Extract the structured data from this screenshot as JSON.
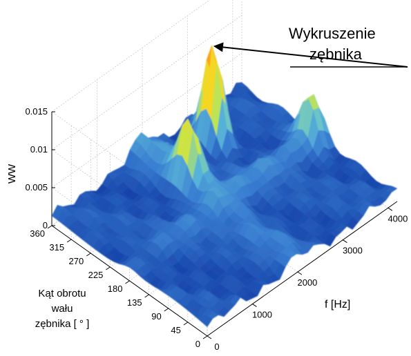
{
  "chart_data": {
    "type": "surface",
    "title": "",
    "zlabel": "WW",
    "xlabel": "f [Hz]",
    "ylabel_lines": [
      "Kąt obrotu",
      "wału",
      "zębnika [ ° ]"
    ],
    "zlim": [
      0,
      0.015
    ],
    "xlim": [
      0,
      4200
    ],
    "ylim": [
      0,
      360
    ],
    "z_ticks": [
      "0",
      "0.005",
      "0.01",
      "0.015"
    ],
    "x_ticks": [
      "0",
      "1000",
      "2000",
      "3000",
      "4000"
    ],
    "y_ticks": [
      "0",
      "45",
      "90",
      "135",
      "180",
      "225",
      "270",
      "315",
      "360"
    ],
    "grid": true,
    "colormap": [
      "#0a2f9c",
      "#3a7fd2",
      "#5fc0d8",
      "#c6e64a",
      "#ffd21a",
      "#ff8a1a",
      "#d81e12"
    ],
    "features": [
      {
        "x": 3000,
        "y": 300,
        "z": 0.015,
        "note": "main peak"
      },
      {
        "x": 2000,
        "y": 250,
        "z": 0.008
      },
      {
        "x": 4000,
        "y": 180,
        "z": 0.0055
      }
    ],
    "annotation": {
      "lines": [
        "Wykruszenie",
        "zębnika"
      ],
      "target": {
        "x": 3000,
        "y": 300,
        "z": 0.015
      }
    }
  }
}
